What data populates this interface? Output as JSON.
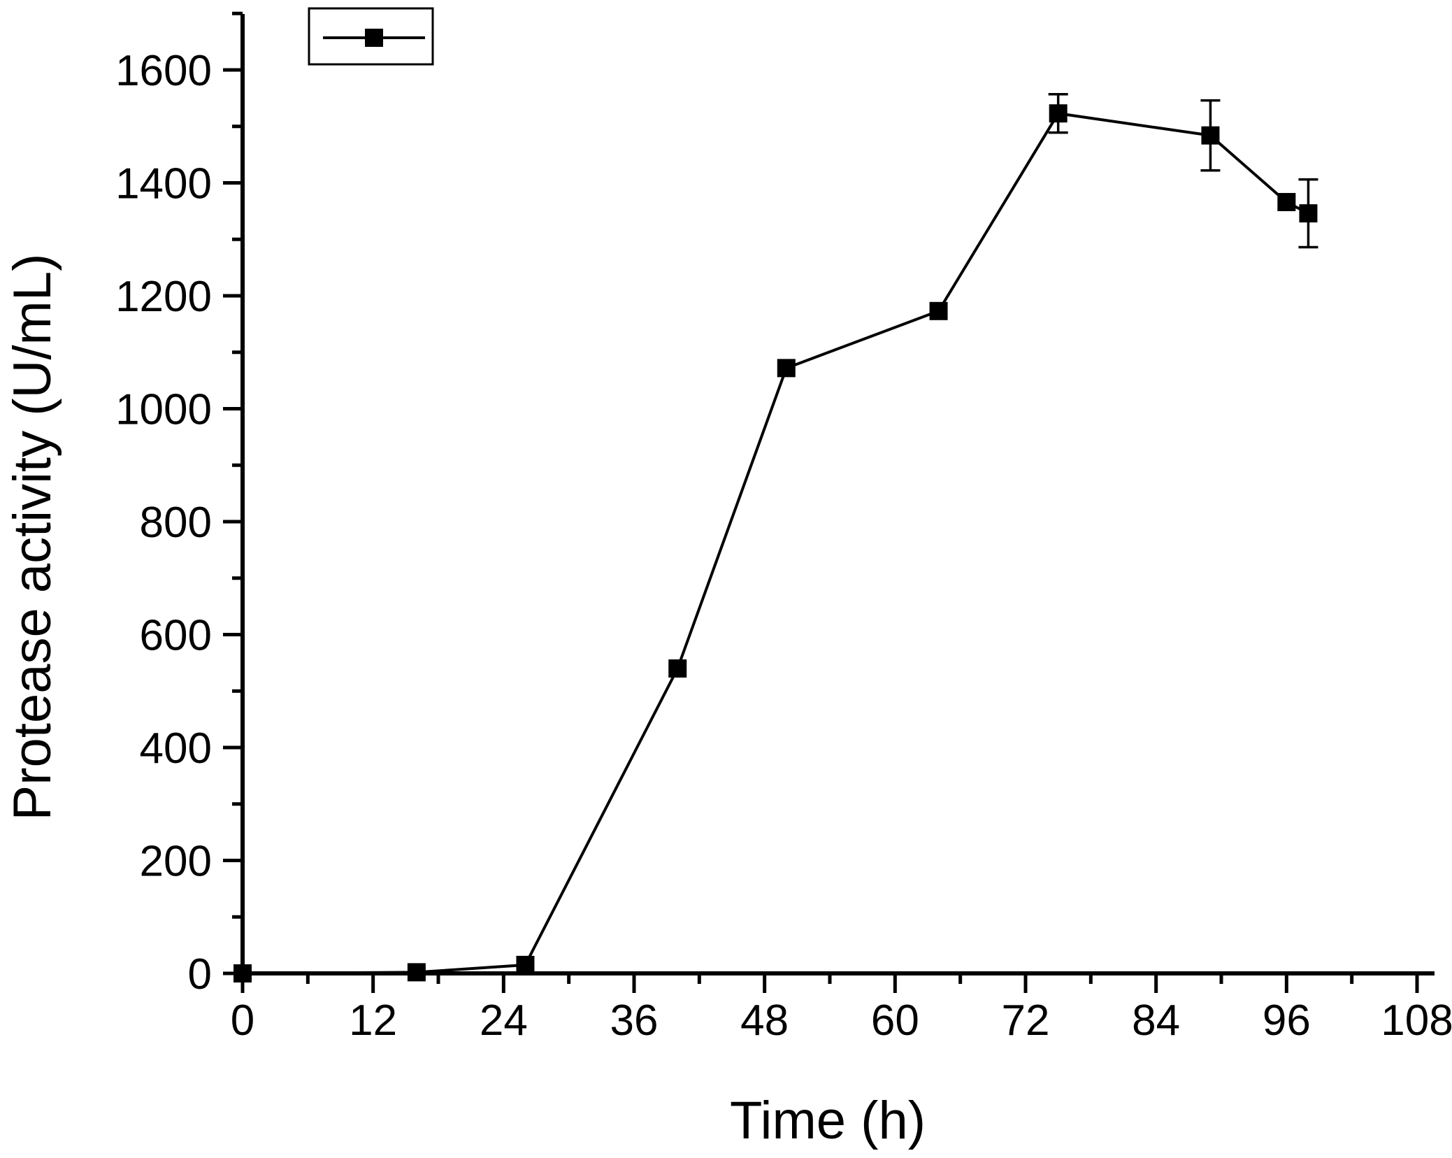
{
  "chart_data": {
    "type": "line",
    "title": "",
    "xlabel": "Time (h)",
    "ylabel": "Protease activity (U/mL)",
    "xlim": [
      0,
      108
    ],
    "ylim": [
      0,
      1700
    ],
    "x_ticks": [
      0,
      12,
      24,
      36,
      48,
      60,
      72,
      84,
      96,
      108
    ],
    "x_tick_labels": [
      "0",
      "12",
      "24",
      "36",
      "48",
      "60",
      "72",
      "84",
      "96",
      "108"
    ],
    "y_ticks": [
      0,
      200,
      400,
      600,
      800,
      1000,
      1200,
      1400,
      1600
    ],
    "y_tick_labels": [
      "0",
      "200",
      "400",
      "600",
      "800",
      "1000",
      "1200",
      "1400",
      "1600"
    ],
    "grid": false,
    "legend": {
      "position": "top-left",
      "entries": [
        ""
      ]
    },
    "series": [
      {
        "name": "",
        "marker": "square",
        "color": "#000000",
        "x": [
          0,
          16,
          26,
          40,
          50,
          64,
          75,
          89,
          96,
          98
        ],
        "values": [
          0,
          2,
          15,
          540,
          1072,
          1173,
          1523,
          1484,
          1366,
          1346
        ],
        "error": [
          0,
          0,
          0,
          0,
          0,
          0,
          34,
          62,
          0,
          60
        ]
      }
    ]
  }
}
